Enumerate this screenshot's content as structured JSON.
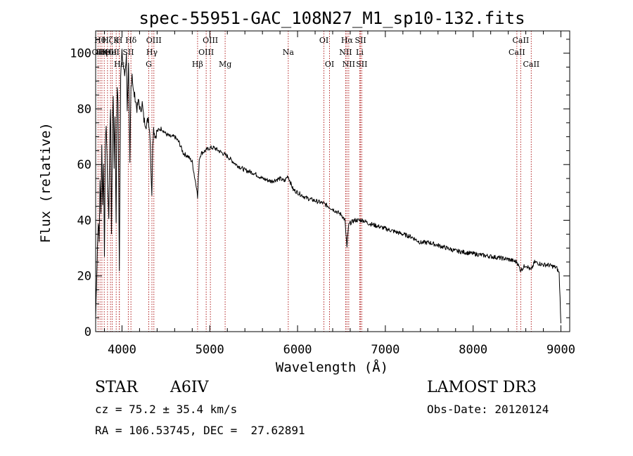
{
  "chart_data": {
    "type": "line",
    "title": "spec-55951-GAC_108N27_M1_sp10-132.fits",
    "xlabel": "Wavelength (Å)",
    "ylabel": "Flux (relative)",
    "xlim": [
      3700,
      9100
    ],
    "ylim": [
      0,
      108
    ],
    "xticks": [
      4000,
      5000,
      6000,
      7000,
      8000,
      9000
    ],
    "xtick_labels": [
      "4000",
      "5000",
      "6000",
      "7000",
      "8000",
      "9000"
    ],
    "yticks": [
      0,
      20,
      40,
      60,
      80,
      100
    ],
    "ytick_labels": [
      "0",
      "20",
      "40",
      "60",
      "80",
      "100"
    ],
    "grid": false,
    "series": [
      {
        "name": "spectrum",
        "x": [
          3700,
          3720,
          3730,
          3740,
          3750,
          3760,
          3770,
          3780,
          3790,
          3800,
          3810,
          3820,
          3835,
          3850,
          3860,
          3870,
          3880,
          3890,
          3900,
          3910,
          3920,
          3933,
          3945,
          3955,
          3970,
          3985,
          4000,
          4010,
          4030,
          4050,
          4060,
          4075,
          4090,
          4102,
          4115,
          4130,
          4150,
          4170,
          4190,
          4210,
          4230,
          4250,
          4280,
          4300,
          4320,
          4340,
          4350,
          4360,
          4380,
          4400,
          4450,
          4500,
          4550,
          4600,
          4650,
          4700,
          4750,
          4800,
          4830,
          4850,
          4861,
          4870,
          4880,
          4900,
          4950,
          5000,
          5050,
          5100,
          5150,
          5200,
          5300,
          5400,
          5500,
          5600,
          5700,
          5800,
          5850,
          5890,
          5950,
          6000,
          6100,
          6200,
          6300,
          6400,
          6500,
          6540,
          6563,
          6580,
          6600,
          6650,
          6700,
          6750,
          6800,
          6900,
          7000,
          7100,
          7200,
          7300,
          7400,
          7500,
          7600,
          7700,
          7800,
          7900,
          8000,
          8100,
          8200,
          8300,
          8400,
          8500,
          8540,
          8600,
          8660,
          8700,
          8750,
          8800,
          8850,
          8900,
          8950,
          8980,
          9000
        ],
        "y": [
          5,
          30,
          40,
          32,
          55,
          42,
          67,
          45,
          60,
          28,
          65,
          75,
          55,
          40,
          68,
          80,
          35,
          70,
          85,
          60,
          78,
          40,
          88,
          82,
          22,
          92,
          100,
          97,
          92,
          99,
          80,
          95,
          60,
          88,
          93,
          86,
          84,
          80,
          83,
          79,
          82,
          76,
          74,
          77,
          70,
          48,
          68,
          73,
          70,
          72,
          73,
          71,
          70,
          70,
          68,
          64,
          63,
          61,
          55,
          52,
          48,
          55,
          62,
          64,
          65,
          66,
          66,
          65,
          64,
          63,
          60,
          58,
          57,
          55,
          54,
          55,
          54,
          56,
          51,
          50,
          48,
          47,
          46,
          44,
          42,
          40,
          30,
          38,
          39,
          40,
          40,
          40,
          39,
          38,
          37,
          36,
          35,
          34,
          32,
          32,
          31,
          30,
          29,
          28.5,
          28,
          27.5,
          27,
          26.5,
          26,
          25,
          22,
          24,
          22,
          25,
          24.5,
          24,
          24,
          23.5,
          23,
          21,
          3
        ]
      }
    ],
    "lines": [
      {
        "wavelength": 3727,
        "label": "OII",
        "row": 2
      },
      {
        "wavelength": 3750,
        "label": "Hθ",
        "row": 1
      },
      {
        "wavelength": 3771,
        "label": "Hη",
        "row": 2
      },
      {
        "wavelength": 3798,
        "label": "He",
        "row": 2
      },
      {
        "wavelength": 3835,
        "label": "Hζ",
        "row": 1
      },
      {
        "wavelength": 3869,
        "label": "OII",
        "row": 2
      },
      {
        "wavelength": 3889,
        "label": "HeI",
        "row": 2
      },
      {
        "wavelength": 3934,
        "label": "K",
        "row": 1
      },
      {
        "wavelength": 3969,
        "label": "H",
        "row": 1
      },
      {
        "wavelength": 3970,
        "label": "Hε",
        "row": 3
      },
      {
        "wavelength": 4072,
        "label": "SII",
        "row": 2
      },
      {
        "wavelength": 4102,
        "label": "Hδ",
        "row": 1
      },
      {
        "wavelength": 4305,
        "label": "G",
        "row": 3
      },
      {
        "wavelength": 4341,
        "label": "Hγ",
        "row": 2
      },
      {
        "wavelength": 4363,
        "label": "OIII",
        "row": 1
      },
      {
        "wavelength": 4861,
        "label": "Hβ",
        "row": 3
      },
      {
        "wavelength": 4959,
        "label": "OIII",
        "row": 2
      },
      {
        "wavelength": 5007,
        "label": "OIII",
        "row": 1
      },
      {
        "wavelength": 5175,
        "label": "Mg",
        "row": 3
      },
      {
        "wavelength": 5894,
        "label": "Na",
        "row": 2
      },
      {
        "wavelength": 6300,
        "label": "OI",
        "row": 1
      },
      {
        "wavelength": 6364,
        "label": "OI",
        "row": 3
      },
      {
        "wavelength": 6548,
        "label": "NII",
        "row": 2
      },
      {
        "wavelength": 6563,
        "label": "Hα",
        "row": 1
      },
      {
        "wavelength": 6583,
        "label": "NII",
        "row": 3
      },
      {
        "wavelength": 6708,
        "label": "Li",
        "row": 2
      },
      {
        "wavelength": 6717,
        "label": "SII",
        "row": 1
      },
      {
        "wavelength": 6731,
        "label": "SII",
        "row": 3
      },
      {
        "wavelength": 8498,
        "label": "CaII",
        "row": 2
      },
      {
        "wavelength": 8542,
        "label": "CaII",
        "row": 1
      },
      {
        "wavelength": 8662,
        "label": "CaII",
        "row": 3
      }
    ]
  },
  "info": {
    "object_class": "STAR",
    "subclass": "A6IV",
    "survey": "LAMOST DR3",
    "velocity": "cz = 75.2 ± 35.4 km/s",
    "obs_date": "Obs-Date: 20120124",
    "coords": "RA = 106.53745, DEC =  27.62891"
  }
}
